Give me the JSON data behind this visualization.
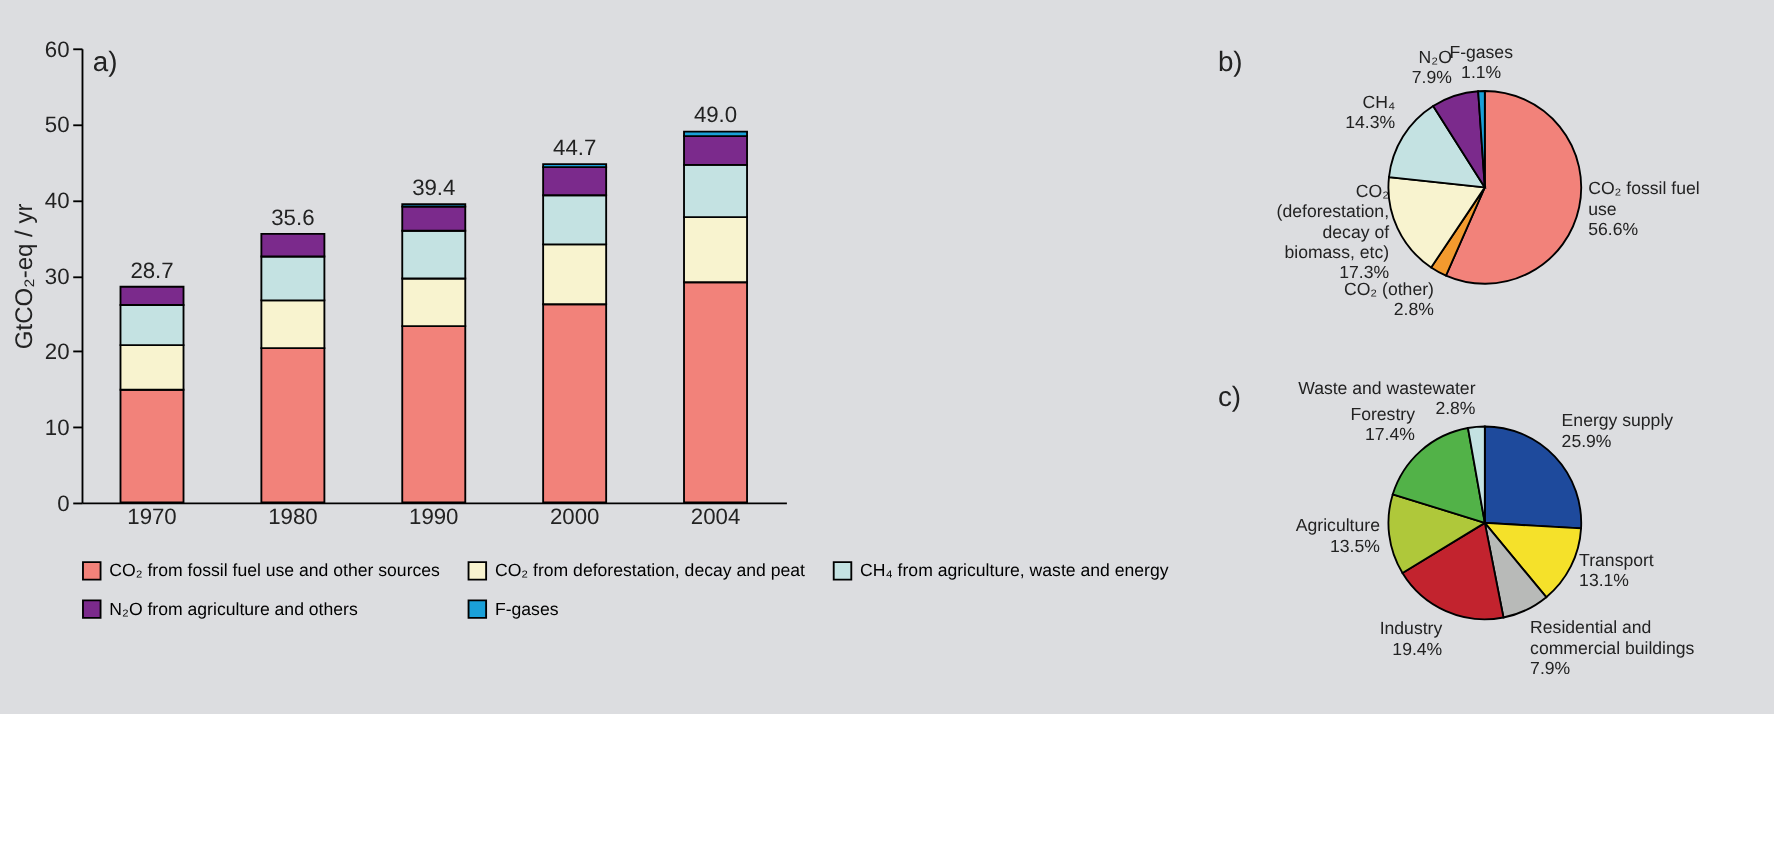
{
  "chart_data": [
    {
      "type": "bar",
      "stacked": true,
      "categories": [
        "1970",
        "1980",
        "1990",
        "2000",
        "2004"
      ],
      "ylabel": "GtCO₂-eq / yr",
      "ylim": [
        0,
        60
      ],
      "yticks": [
        0,
        10,
        20,
        30,
        40,
        50,
        60
      ],
      "grid": false,
      "legend": "bottom",
      "annotations": [
        "a)"
      ],
      "series": [
        {
          "name": "CO₂ from fossil fuel use and other sources",
          "color": "#f2827a",
          "values": [
            14.9,
            20.4,
            23.3,
            26.2,
            29.1
          ]
        },
        {
          "name": "CO₂ from deforestation, decay and peat",
          "color": "#f8f3cf",
          "values": [
            5.9,
            6.3,
            6.3,
            7.9,
            8.6
          ]
        },
        {
          "name": "CH₄ from agriculture, waste and energy",
          "color": "#c4e2e2",
          "values": [
            5.3,
            5.8,
            6.3,
            6.5,
            6.9
          ]
        },
        {
          "name": "N₂O from agriculture and others",
          "color": "#7b2a8c",
          "values": [
            2.4,
            3.0,
            3.2,
            3.7,
            3.8
          ]
        },
        {
          "name": "F-gases",
          "color": "#1aa0d8",
          "values": [
            null,
            null,
            0.3,
            0.4,
            0.6
          ]
        }
      ],
      "totals": [
        "28.7",
        "35.6",
        "39.4",
        "44.7",
        "49.0"
      ]
    },
    {
      "type": "pie",
      "legend": false,
      "annotations": [
        "b)"
      ],
      "categories": [
        "CO₂ fossil fuel use",
        "CO₂ (other)",
        "CO₂ (deforestation, decay of biomass, etc)",
        "CH₄",
        "N₂O",
        "F-gases"
      ],
      "values": [
        56.6,
        2.8,
        17.3,
        14.3,
        7.9,
        1.1
      ],
      "colors": [
        "#f2827a",
        "#f39a2e",
        "#f8f3cf",
        "#c4e2e2",
        "#7b2a8c",
        "#1aa0d8"
      ],
      "value_labels": [
        "56.6%",
        "2.8%",
        "17.3%",
        "14.3%",
        "7.9%",
        "1.1%"
      ]
    },
    {
      "type": "pie",
      "legend": false,
      "annotations": [
        "c)"
      ],
      "categories": [
        "Energy supply",
        "Transport",
        "Residential and commercial buildings",
        "Industry",
        "Agriculture",
        "Forestry",
        "Waste and wastewater"
      ],
      "values": [
        25.9,
        13.1,
        7.9,
        19.4,
        13.5,
        17.4,
        2.8
      ],
      "colors": [
        "#1e4a9c",
        "#f5e12a",
        "#b8bab8",
        "#c2232e",
        "#afc83a",
        "#52b248",
        "#c4e2e2"
      ],
      "value_labels": [
        "25.9%",
        "13.1%",
        "7.9%",
        "19.4%",
        "13.5%",
        "17.4%",
        "2.8%"
      ]
    }
  ]
}
